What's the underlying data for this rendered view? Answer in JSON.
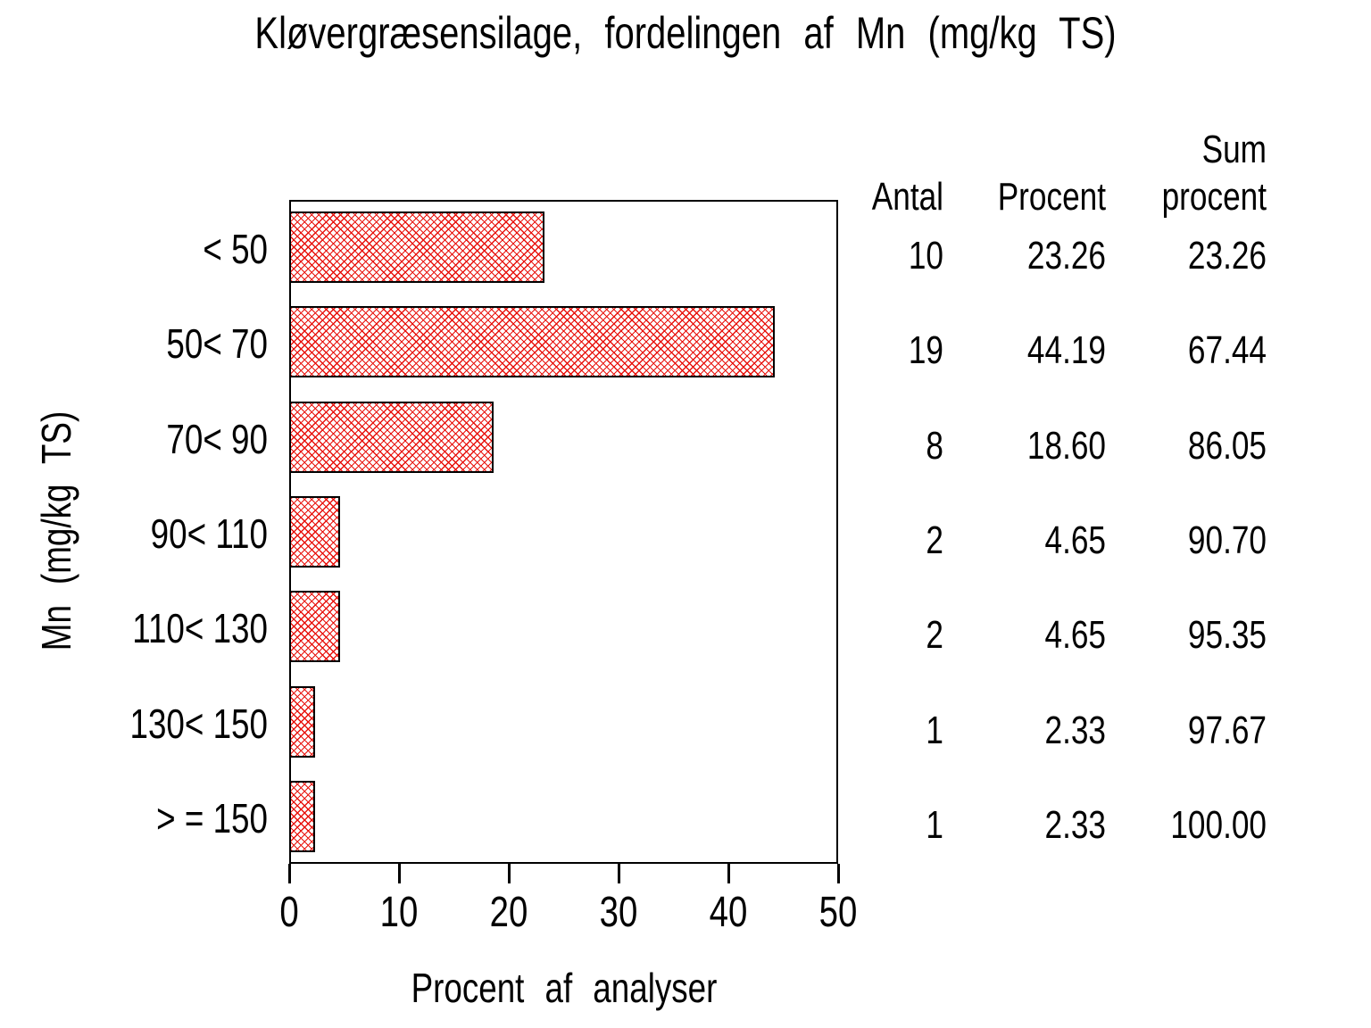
{
  "title": "Kløvergræsensilage, fordelingen af Mn (mg/kg TS)",
  "chart_data": {
    "type": "bar",
    "orientation": "horizontal",
    "title": "Kløvergræsensilage, fordelingen af Mn (mg/kg TS)",
    "categories": [
      "< 50",
      "50< 70",
      "70< 90",
      "90< 110",
      "110< 130",
      "130< 150",
      "> = 150"
    ],
    "values": [
      23.26,
      44.19,
      18.6,
      4.65,
      4.65,
      2.33,
      2.33
    ],
    "counts": [
      10,
      19,
      8,
      2,
      2,
      1,
      1
    ],
    "cumulative_percents": [
      23.26,
      67.44,
      86.05,
      90.7,
      95.35,
      97.67,
      100.0
    ],
    "xlabel": "Procent af analyser",
    "ylabel": "Mn (mg/kg TS)",
    "xlim": [
      0,
      50
    ],
    "xticks": [
      "0",
      "10",
      "20",
      "30",
      "40",
      "50"
    ],
    "grid": false,
    "bar_fill_style": "red-crosshatch",
    "bar_pattern_color": "#e8120c",
    "bar_border_color": "#000000",
    "frame_color": "#000000",
    "background_color": "#ffffff"
  },
  "table": {
    "headers": {
      "antal": "Antal",
      "procent": "Procent",
      "sum_line1": "Sum",
      "sum_line2": "procent"
    },
    "rows": [
      {
        "antal": "10",
        "procent": "23.26",
        "sum": "23.26"
      },
      {
        "antal": "19",
        "procent": "44.19",
        "sum": "67.44"
      },
      {
        "antal": "8",
        "procent": "18.60",
        "sum": "86.05"
      },
      {
        "antal": "2",
        "procent": "4.65",
        "sum": "90.70"
      },
      {
        "antal": "2",
        "procent": "4.65",
        "sum": "95.35"
      },
      {
        "antal": "1",
        "procent": "2.33",
        "sum": "97.67"
      },
      {
        "antal": "1",
        "procent": "2.33",
        "sum": "100.00"
      }
    ]
  }
}
